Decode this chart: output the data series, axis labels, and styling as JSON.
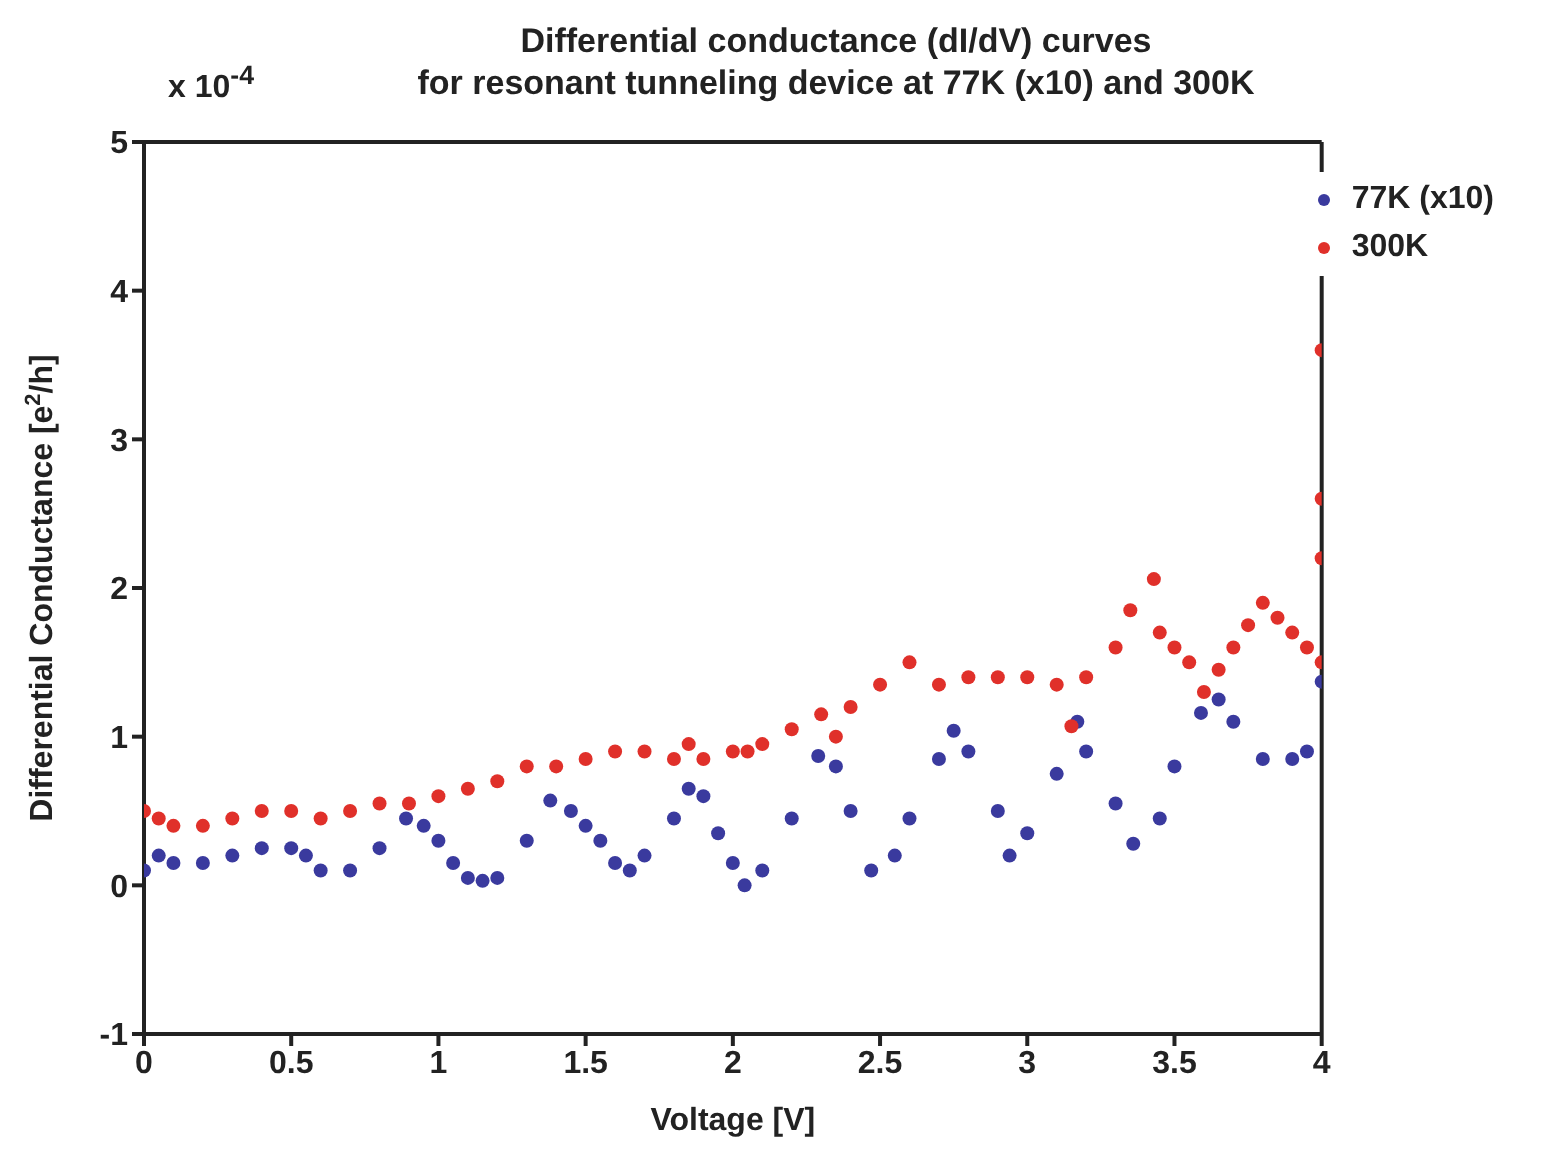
{
  "chart_data": {
    "type": "scatter",
    "title": "Differential conductance (dI/dV) curves",
    "subtitle": "for resonant tunneling device at 77K (x10) and 300K",
    "xlabel": "Voltage [V]",
    "ylabel": "Differential Conductance [e$^{2}$/h]",
    "annotations": [
      "x 10$^{-4}$"
    ],
    "xlim": [
      0,
      4
    ],
    "xticks": [
      0,
      0.5,
      1,
      1.5,
      2,
      2.5,
      3,
      3.5,
      4
    ],
    "ylim": [
      -1,
      5
    ],
    "yticks": [
      -1,
      0,
      1,
      2,
      3,
      4,
      5
    ],
    "grid": false,
    "legend": "top right",
    "marker": "circle",
    "series": [
      {
        "name": "77K (x10)",
        "color": "#3a3a9e",
        "x": [
          0,
          0.05,
          0.1,
          0.2,
          0.3,
          0.4,
          0.5,
          0.55,
          0.6,
          0.7,
          0.8,
          0.89,
          0.95,
          1.0,
          1.05,
          1.1,
          1.15,
          1.2,
          1.3,
          1.38,
          1.45,
          1.5,
          1.55,
          1.6,
          1.65,
          1.7,
          1.8,
          1.85,
          1.9,
          1.95,
          2.0,
          2.04,
          2.1,
          2.2,
          2.29,
          2.35,
          2.4,
          2.47,
          2.55,
          2.6,
          2.7,
          2.75,
          2.8,
          2.9,
          2.94,
          3.0,
          3.1,
          3.17,
          3.2,
          3.3,
          3.36,
          3.45,
          3.5,
          3.59,
          3.65,
          3.7,
          3.8,
          3.9,
          3.95,
          4.0
        ],
        "values": [
          0.1,
          0.2,
          0.15,
          0.15,
          0.2,
          0.25,
          0.25,
          0.2,
          0.1,
          0.1,
          0.25,
          0.45,
          0.4,
          0.3,
          0.15,
          0.05,
          0.03,
          0.05,
          0.3,
          0.57,
          0.5,
          0.4,
          0.3,
          0.15,
          0.1,
          0.2,
          0.45,
          0.65,
          0.6,
          0.35,
          0.15,
          0,
          0.1,
          0.45,
          0.87,
          0.8,
          0.5,
          0.1,
          0.2,
          0.45,
          0.85,
          1.04,
          0.9,
          0.5,
          0.2,
          0.35,
          0.75,
          1.1,
          0.9,
          0.55,
          0.28,
          0.45,
          0.8,
          1.16,
          1.25,
          1.1,
          0.85,
          0.85,
          0.9,
          1.37
        ]
      },
      {
        "name": "300K",
        "color": "#e0302a",
        "x": [
          0,
          0.05,
          0.1,
          0.2,
          0.3,
          0.4,
          0.5,
          0.6,
          0.7,
          0.8,
          0.9,
          1.0,
          1.1,
          1.2,
          1.3,
          1.4,
          1.5,
          1.6,
          1.7,
          1.8,
          1.85,
          1.9,
          2.0,
          2.05,
          2.1,
          2.2,
          2.3,
          2.35,
          2.4,
          2.5,
          2.6,
          2.7,
          2.8,
          2.9,
          3.0,
          3.1,
          3.15,
          3.2,
          3.3,
          3.35,
          3.43,
          3.45,
          3.5,
          3.55,
          3.6,
          3.65,
          3.7,
          3.75,
          3.8,
          3.85,
          3.9,
          3.95,
          4.0,
          4.0,
          4.0,
          4.0
        ],
        "values": [
          0.5,
          0.45,
          0.4,
          0.4,
          0.45,
          0.5,
          0.5,
          0.45,
          0.5,
          0.55,
          0.55,
          0.6,
          0.65,
          0.7,
          0.8,
          0.8,
          0.85,
          0.9,
          0.9,
          0.85,
          0.95,
          0.85,
          0.9,
          0.9,
          0.95,
          1.05,
          1.15,
          1.0,
          1.2,
          1.35,
          1.5,
          1.35,
          1.4,
          1.4,
          1.4,
          1.35,
          1.07,
          1.4,
          1.6,
          1.85,
          2.06,
          1.7,
          1.6,
          1.5,
          1.3,
          1.45,
          1.6,
          1.75,
          1.9,
          1.8,
          1.7,
          1.6,
          1.5,
          2.2,
          2.6,
          3.6
        ]
      }
    ]
  }
}
